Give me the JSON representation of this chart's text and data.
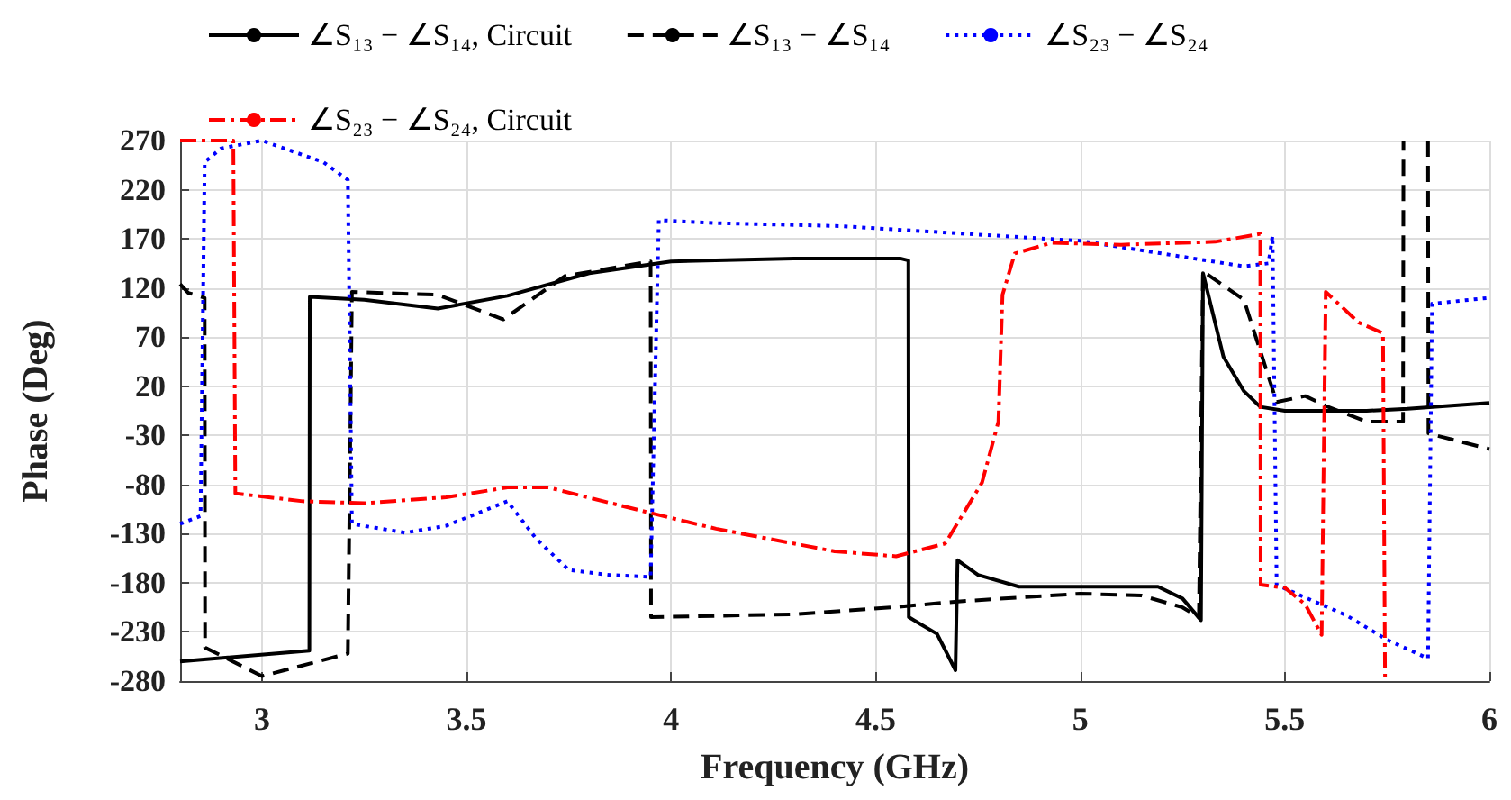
{
  "chart_data": {
    "type": "line",
    "xlabel": "Frequency (GHz)",
    "ylabel": "Phase (Deg)",
    "xlim": [
      2.8,
      6
    ],
    "xticks": [
      3,
      3.5,
      4,
      4.5,
      5,
      5.5,
      6
    ],
    "ylim": [
      -280,
      270
    ],
    "yticks": [
      -280,
      -230,
      -180,
      -130,
      -80,
      -30,
      20,
      70,
      120,
      170,
      220,
      270
    ],
    "grid": true,
    "legend": "top",
    "marker": "none",
    "series": [
      {
        "name": "∠S₁₃ − ∠S₁₄, Circuit",
        "color": "#000000",
        "line_style": "solid",
        "x": [
          2.8,
          3.116,
          3.117,
          3.25,
          3.43,
          3.6,
          3.8,
          4.0,
          4.3,
          4.56,
          4.58,
          4.581,
          4.65,
          4.695,
          4.7,
          4.75,
          4.85,
          5.0,
          5.19,
          5.25,
          5.295,
          5.3,
          5.35,
          5.4,
          5.44,
          5.5,
          5.7,
          5.8,
          6.0
        ],
        "values": [
          -260,
          -249,
          111,
          108,
          99,
          112,
          135,
          147,
          150,
          150,
          148,
          -215,
          -232,
          -269,
          -157,
          -172,
          -184,
          -184,
          -184,
          -196,
          -218,
          135,
          50,
          15,
          -1,
          -5,
          -5,
          -3,
          3
        ]
      },
      {
        "name": "∠S₁₃ − ∠S₁₄",
        "color": "#000000",
        "line_style": "dashed",
        "x": [
          2.8,
          2.82,
          2.86,
          2.861,
          2.9,
          3.0,
          3.21,
          3.22,
          3.43,
          3.59,
          3.74,
          3.95,
          3.951,
          4.3,
          4.54,
          4.7,
          5.0,
          5.15,
          5.25,
          5.29,
          5.3,
          5.4,
          5.48,
          5.55,
          5.6,
          5.7,
          5.789,
          5.79,
          5.82,
          5.85,
          5.851,
          6.0
        ],
        "values": [
          124,
          115,
          110,
          -246,
          -254,
          -275,
          -252,
          116,
          113,
          88,
          132,
          147,
          -215,
          -212,
          -205,
          -199,
          -191,
          -193,
          -205,
          -215,
          137,
          108,
          4,
          10,
          0,
          -16,
          -16,
          270,
          null,
          270,
          -28,
          -44
        ]
      },
      {
        "name": "∠S₂₃ − ∠S₂₄",
        "color": "#0000ff",
        "line_style": "dotted",
        "x": [
          2.8,
          2.85,
          2.86,
          2.9,
          3.0,
          3.15,
          3.21,
          3.22,
          3.35,
          3.45,
          3.6,
          3.67,
          3.75,
          3.85,
          3.95,
          3.97,
          4.11,
          4.41,
          5.0,
          5.4,
          5.46,
          5.47,
          5.48,
          5.55,
          5.65,
          5.75,
          5.85,
          5.86,
          6.0
        ],
        "values": [
          -120,
          -112,
          248,
          262,
          270,
          248,
          230,
          -120,
          -129,
          -122,
          -97,
          -135,
          -167,
          -172,
          -174,
          189,
          186,
          183,
          168,
          142,
          145,
          173,
          -182,
          -195,
          -213,
          -238,
          -257,
          104,
          110
        ]
      },
      {
        "name": "∠S₂₃ − ∠S₂₄, Circuit",
        "color": "#ff0000",
        "line_style": "dashdot",
        "x": [
          2.8,
          2.93,
          2.935,
          3.1,
          3.25,
          3.45,
          3.6,
          3.7,
          3.95,
          4.11,
          4.4,
          4.55,
          4.67,
          4.76,
          4.8,
          4.81,
          4.84,
          4.93,
          5.1,
          5.33,
          5.44,
          5.441,
          5.5,
          5.55,
          5.59,
          5.6,
          5.68,
          5.74,
          5.745
        ],
        "values": [
          270,
          270,
          -89,
          -97,
          -99,
          -93,
          -83,
          -83,
          -109,
          -125,
          -148,
          -153,
          -140,
          -78,
          -16,
          113,
          155,
          166,
          164,
          167,
          175,
          -182,
          -185,
          -202,
          -233,
          116,
          85,
          74,
          -280
        ]
      }
    ]
  }
}
